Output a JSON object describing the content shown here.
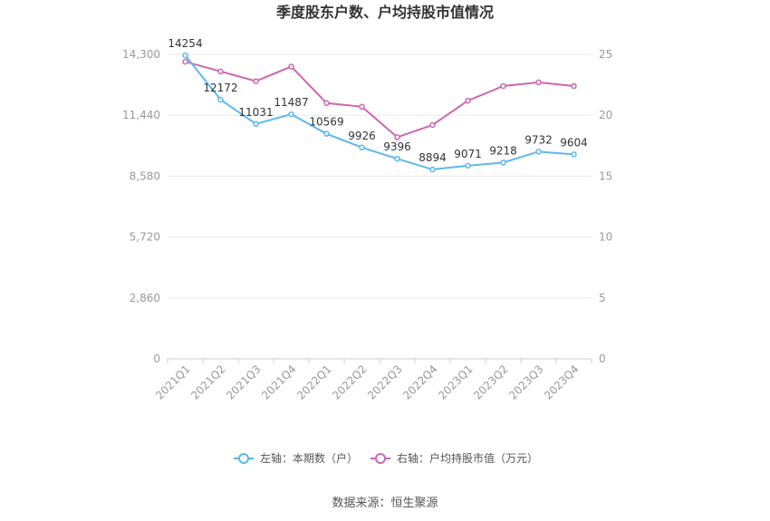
{
  "chart_data": {
    "type": "line",
    "title": "季度股东户数、户均持股市值情况",
    "categories": [
      "2021Q1",
      "2021Q2",
      "2021Q3",
      "2021Q4",
      "2022Q1",
      "2022Q2",
      "2022Q3",
      "2022Q4",
      "2023Q1",
      "2023Q2",
      "2023Q3",
      "2023Q4"
    ],
    "left_axis": {
      "ticks": [
        "0",
        "2,860",
        "5,720",
        "8,580",
        "11,440",
        "14,300"
      ],
      "min": 0,
      "max": 14300
    },
    "right_axis": {
      "ticks": [
        "0",
        "5",
        "10",
        "15",
        "20",
        "25"
      ],
      "min": 0,
      "max": 25
    },
    "series": [
      {
        "name": "左轴：本期数（户）",
        "axis": "left",
        "color": "#5bb8ee",
        "values": [
          14254,
          12172,
          11031,
          11487,
          10569,
          9926,
          9396,
          8894,
          9071,
          9218,
          9732,
          9604
        ],
        "labels": [
          "14254",
          "12172",
          "11031",
          "11487",
          "10569",
          "9926",
          "9396",
          "8894",
          "9071",
          "9218",
          "9732",
          "9604"
        ]
      },
      {
        "name": "右轴：户均持股市值（万元）",
        "axis": "right",
        "color": "#cc66b0",
        "values": [
          24.4,
          23.6,
          22.8,
          24.0,
          21.0,
          20.7,
          18.2,
          19.2,
          21.2,
          22.4,
          22.7,
          22.4
        ]
      }
    ],
    "grid": true,
    "legend_position": "bottom-center"
  },
  "source": "数据来源：恒生聚源"
}
